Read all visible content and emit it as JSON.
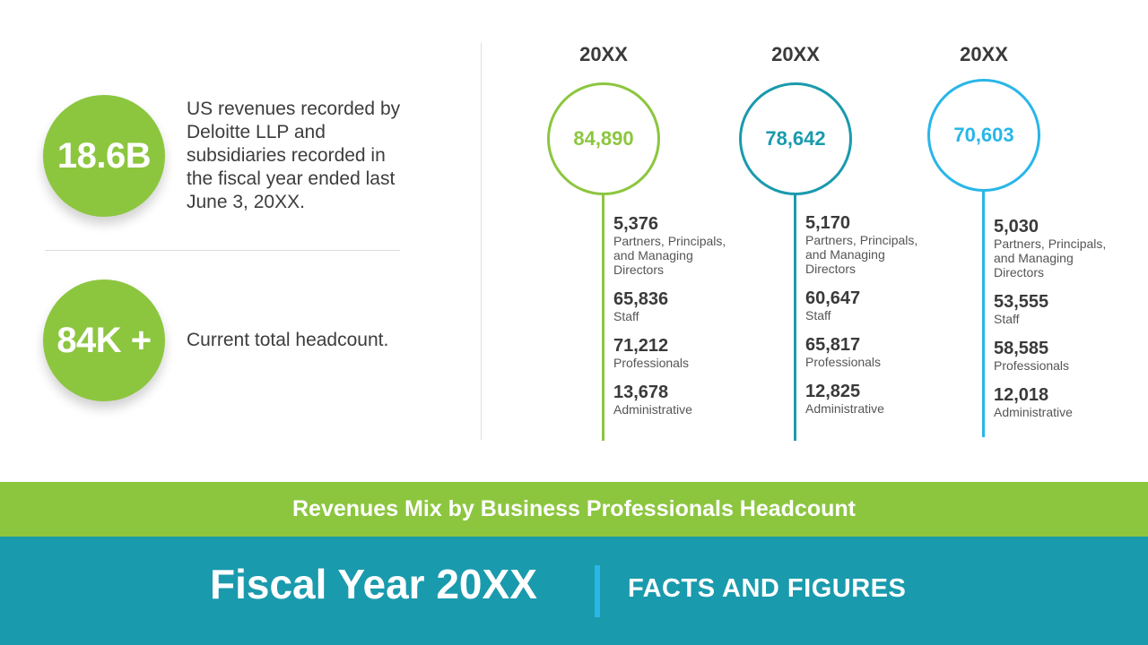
{
  "stats": [
    {
      "value": "18.6B",
      "text": "US revenues recorded by Deloitte LLP and subsidiaries recorded in the fiscal year ended last June 3, 20XX."
    },
    {
      "value": "84K +",
      "text": "Current total headcount."
    }
  ],
  "columns": [
    {
      "year": "20XX",
      "total": "84,890",
      "color": "#8cc63f",
      "items": [
        {
          "value": "5,376",
          "label": "Partners, Principals, and Managing Directors"
        },
        {
          "value": "65,836",
          "label": "Staff"
        },
        {
          "value": "71,212",
          "label": "Professionals"
        },
        {
          "value": "13,678",
          "label": "Administrative"
        }
      ]
    },
    {
      "year": "20XX",
      "total": "78,642",
      "color": "#1a9aad",
      "items": [
        {
          "value": "5,170",
          "label": "Partners, Principals, and Managing Directors"
        },
        {
          "value": "60,647",
          "label": "Staff"
        },
        {
          "value": "65,817",
          "label": "Professionals"
        },
        {
          "value": "12,825",
          "label": "Administrative"
        }
      ]
    },
    {
      "year": "20XX",
      "total": "70,603",
      "color": "#29b6e8",
      "items": [
        {
          "value": "5,030",
          "label": "Partners, Principals, and Managing Directors"
        },
        {
          "value": "53,555",
          "label": "Staff"
        },
        {
          "value": "58,585",
          "label": "Professionals"
        },
        {
          "value": "12,018",
          "label": "Administrative"
        }
      ]
    }
  ],
  "banner": "Revenues Mix by Business Professionals Headcount",
  "footer": {
    "title": "Fiscal Year 20XX",
    "subtitle": "FACTS AND FIGURES"
  },
  "colors": {
    "green": "#8cc63f",
    "teal": "#1a9aad",
    "blue": "#29b6e8"
  }
}
